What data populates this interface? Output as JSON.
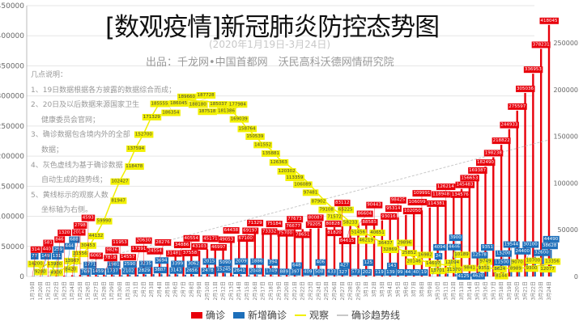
{
  "title": "[数观疫情]新冠肺炎防控态势图",
  "subtitle": "(2020年1月19日-3月24日)",
  "producer": "出品：千龙网•中国首都网　沃民高科沃德网情研究院",
  "notes": {
    "heading": "几点说明：",
    "lines": [
      "1、19日数据根据各方披露的数据综合而成；",
      "2、20日及以后数据来源国家卫生",
      "健康委员会官网；",
      "3、确诊数据包含境内外的全部",
      "数据；",
      "4、灰色虚线为基于确诊数据",
      "自动生成的趋势线；",
      "5、黄线标示的观察人数",
      "坐标轴为右侧。"
    ]
  },
  "legend": {
    "confirmed": "确诊",
    "new_confirmed": "新增确诊",
    "observation": "观察",
    "trendline": "确诊趋势线"
  },
  "colors": {
    "confirmed": "#e8000b",
    "new_confirmed": "#1d6fba",
    "observation": "#f2f000",
    "trendline": "#c8c8c8"
  },
  "chart_data": {
    "type": "bar",
    "title": "[数观疫情]新冠肺炎防控态势图",
    "grid": true,
    "legend_position": "bottom",
    "y_left": {
      "range": [
        0,
        450000
      ],
      "ticks": [
        "0",
        "50000",
        "100000",
        "150000",
        "200000",
        "250000",
        "300000",
        "350000",
        "400000",
        "450000"
      ]
    },
    "y_right": {
      "range": [
        0,
        290000
      ],
      "ticks": [
        "0",
        "50000",
        "100000",
        "150000",
        "200000",
        "250000"
      ]
    },
    "categories": [
      "1月19日",
      "1月20日",
      "1月21日",
      "1月22日",
      "1月23日",
      "1月24日",
      "1月25日",
      "1月26日",
      "1月27日",
      "1月28日",
      "1月29日",
      "1月30日",
      "1月31日",
      "2月1日",
      "2月2日",
      "2月3日",
      "2月4日",
      "2月5日",
      "2月6日",
      "2月7日",
      "2月8日",
      "2月9日",
      "2月10日",
      "2月11日",
      "2月12日",
      "2月13日",
      "2月14日",
      "2月15日",
      "2月16日",
      "2月17日",
      "2月18日",
      "2月19日",
      "2月20日",
      "2月21日",
      "2月22日",
      "2月23日",
      "2月24日",
      "2月25日",
      "2月26日",
      "2月27日",
      "2月28日",
      "2月29日",
      "3月1日",
      "3月2日",
      "3月3日",
      "3月4日",
      "3月5日",
      "3月6日",
      "3月7日",
      "3月8日",
      "3月9日",
      "3月10日",
      "3月11日",
      "3月12日",
      "3月13日",
      "3月14日",
      "3月15日",
      "3月16日",
      "3月17日",
      "3月18日",
      "3月19日",
      "3月20日",
      "3月21日",
      "3月22日",
      "3月23日",
      "3月24日"
    ],
    "series": [
      {
        "name": "确诊",
        "type": "bar",
        "axis": "left",
        "values": [
          314,
          440,
          581,
          846,
          1320,
          2014,
          2798,
          4593,
          6065,
          7818,
          9826,
          11953,
          14557,
          17391,
          20630,
          24554,
          28276,
          31481,
          34886,
          37558,
          40554,
          43103,
          45171,
          46997,
          49053,
          64438,
          67100,
          69197,
          71329,
          73332,
          75184,
          75700,
          76677,
          77673,
          78651,
          79205,
          80087,
          80828,
          81820,
          83112,
          84615,
          86604,
          88585,
          90443,
          93016,
          95314,
          98425,
          102050,
          106099,
          109991,
          114381,
          118948,
          126214,
          134576,
          145483,
          156653,
          169387,
          182490,
          198238,
          218822,
          244933,
          275597,
          305036,
          336953,
          378231,
          418045
        ]
      },
      {
        "name": "新增确诊",
        "type": "bar",
        "axis": "left",
        "values": [
          77,
          149,
          131,
          259,
          444,
          688,
          769,
          1771,
          1459,
          1737,
          1981,
          2102,
          2590,
          2829,
          3235,
          3887,
          3694,
          3143,
          3399,
          2656,
          3062,
          2478,
          2015,
          15245,
          5090,
          2641,
          2009,
          2048,
          1886,
          1749,
          394,
          889,
          397,
          648,
          409,
          508,
          406,
          433,
          327,
          427,
          573,
          202,
          125,
          119,
          139,
          143,
          99,
          44,
          40,
          19,
          24,
          4094,
          4446,
          3900,
          4125,
          4620,
          12578,
          9351,
          11500,
          15200,
          19544,
          24400,
          30100,
          32600,
          38628,
          44490
        ]
      },
      {
        "name": "观察",
        "type": "line",
        "axis": "right",
        "values": [
          14200,
          9200,
          13900,
          4900,
          8420,
          13967,
          21556,
          30453,
          44132,
          59990,
          81947,
          102427,
          118478,
          137594,
          152700,
          171329,
          185555,
          186354,
          186045,
          189660,
          188180,
          187728,
          187518,
          185037,
          181386,
          177984,
          169039,
          158764,
          150539,
          141552,
          135881,
          126363,
          120302,
          113359,
          106089,
          97481,
          87902,
          79108,
          71572,
          65225,
          58233,
          51456,
          46219,
          40651,
          36437,
          32869,
          29896,
          25852,
          20146,
          16982,
          14607,
          13701,
          12094,
          11370,
          10189,
          9841,
          9351,
          9749,
          8624,
          8144,
          8989,
          9070,
          9300,
          10700,
          12077,
          13356
        ]
      },
      {
        "name": "确诊趋势线",
        "type": "trendline",
        "axis": "left",
        "based_on": "确诊"
      }
    ]
  }
}
